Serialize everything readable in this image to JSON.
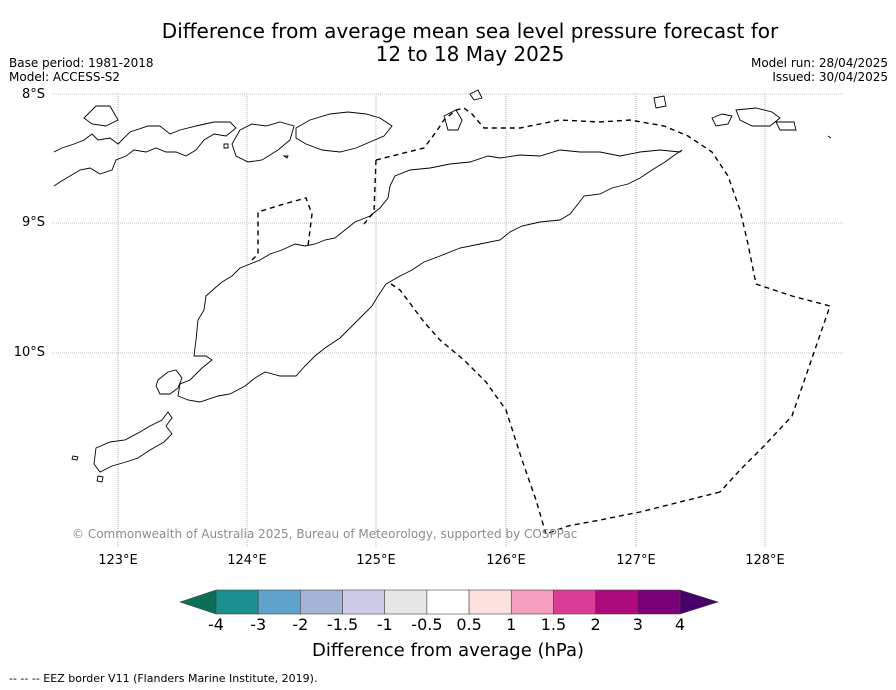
{
  "title_line1": "Difference from average mean sea level pressure forecast for",
  "title_line2": "12 to 18 May 2025",
  "base_period": "Base period: 1981-2018",
  "model": "Model: ACCESS-S2",
  "model_run": "Model run: 28/04/2025",
  "issued": "Issued: 30/04/2025",
  "lat_labels": [
    "8°S",
    "9°S",
    "10°S"
  ],
  "lon_labels": [
    "123°E",
    "124°E",
    "125°E",
    "126°E",
    "127°E",
    "128°E"
  ],
  "copyright": "© Commonwealth of Australia 2025, Bureau of Meteorology, supported by COSPPac",
  "colorbar": {
    "title": "Difference from average (hPa)",
    "tick_labels": [
      "-4",
      "-3",
      "-2",
      "-1.5",
      "-1",
      "-0.5",
      "0.5",
      "1",
      "1.5",
      "2",
      "3",
      "4"
    ],
    "colors": [
      "#1a8f8f",
      "#5fa3cc",
      "#a3b4d6",
      "#cccce6",
      "#e6e6e6",
      "#ffffff",
      "#fde0e0",
      "#f59dbd",
      "#db3c96",
      "#ad0a7d",
      "#7a0177"
    ],
    "under_color": "#0b6e58",
    "over_color": "#49006a"
  },
  "footer": "--  --  -- EEZ border V11 (Flanders Marine Institute, 2019)."
}
